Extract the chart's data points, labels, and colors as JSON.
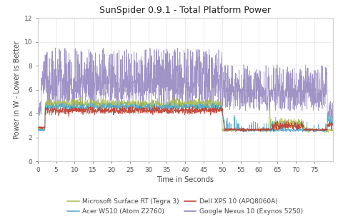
{
  "title": "SunSpider 0.9.1 - Total Platform Power",
  "xlabel": "Time in Seconds",
  "ylabel": "Power in W - Lower is Better",
  "xlim": [
    0,
    80
  ],
  "ylim": [
    0,
    12
  ],
  "xticks": [
    0,
    5,
    10,
    15,
    20,
    25,
    30,
    35,
    40,
    45,
    50,
    55,
    60,
    65,
    70,
    75
  ],
  "yticks": [
    0,
    2,
    4,
    6,
    8,
    10,
    12
  ],
  "legend": [
    {
      "label": "Microsoft Surface RT (Tegra 3)",
      "color": "#a8b84b"
    },
    {
      "label": "Acer W510 (Atom Z2760)",
      "color": "#4da6c8"
    },
    {
      "label": "Dell XPS 10 (APQ8060A)",
      "color": "#c0392b"
    },
    {
      "label": "Google Nexus 10 (Exynos 5250)",
      "color": "#8878b8"
    }
  ],
  "background_color": "#ffffff",
  "grid_color": "#d8d8d8",
  "title_fontsize": 9,
  "axis_fontsize": 7,
  "tick_fontsize": 6.5,
  "legend_fontsize": 6.5,
  "total_seconds": 80,
  "samples_per_second": 20
}
